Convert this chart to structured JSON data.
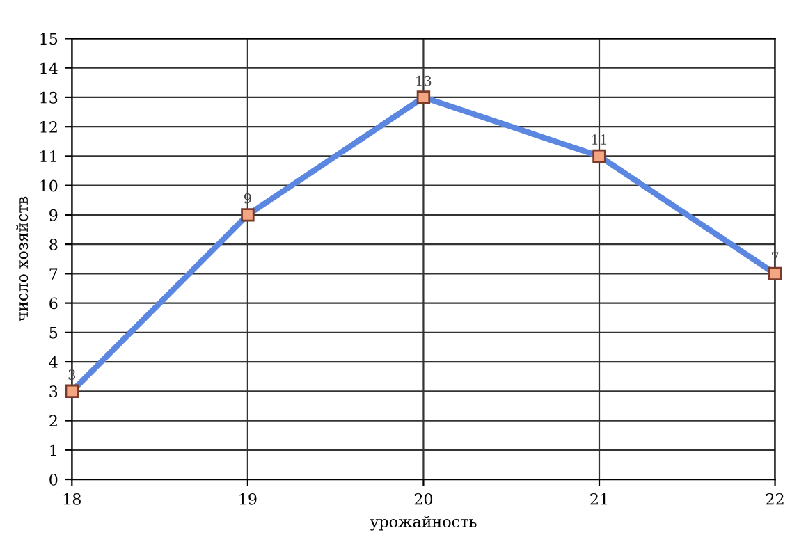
{
  "chart_data": {
    "type": "line",
    "xlabel": "урожайность",
    "ylabel": "число хозяйств",
    "x": [
      18,
      19,
      20,
      21,
      22
    ],
    "series": [
      {
        "color": "#5b87e0",
        "values": [
          3,
          9,
          13,
          11,
          7
        ]
      }
    ],
    "xlim": [
      18,
      22
    ],
    "xticks": [
      18,
      19,
      20,
      21,
      22
    ],
    "ylim": [
      0,
      15
    ],
    "yticks": [
      0,
      1,
      2,
      3,
      4,
      5,
      6,
      7,
      8,
      9,
      10,
      11,
      12,
      13,
      14,
      15
    ],
    "grid": true,
    "marker": "square",
    "line_style": "solid",
    "data_labels": true
  }
}
